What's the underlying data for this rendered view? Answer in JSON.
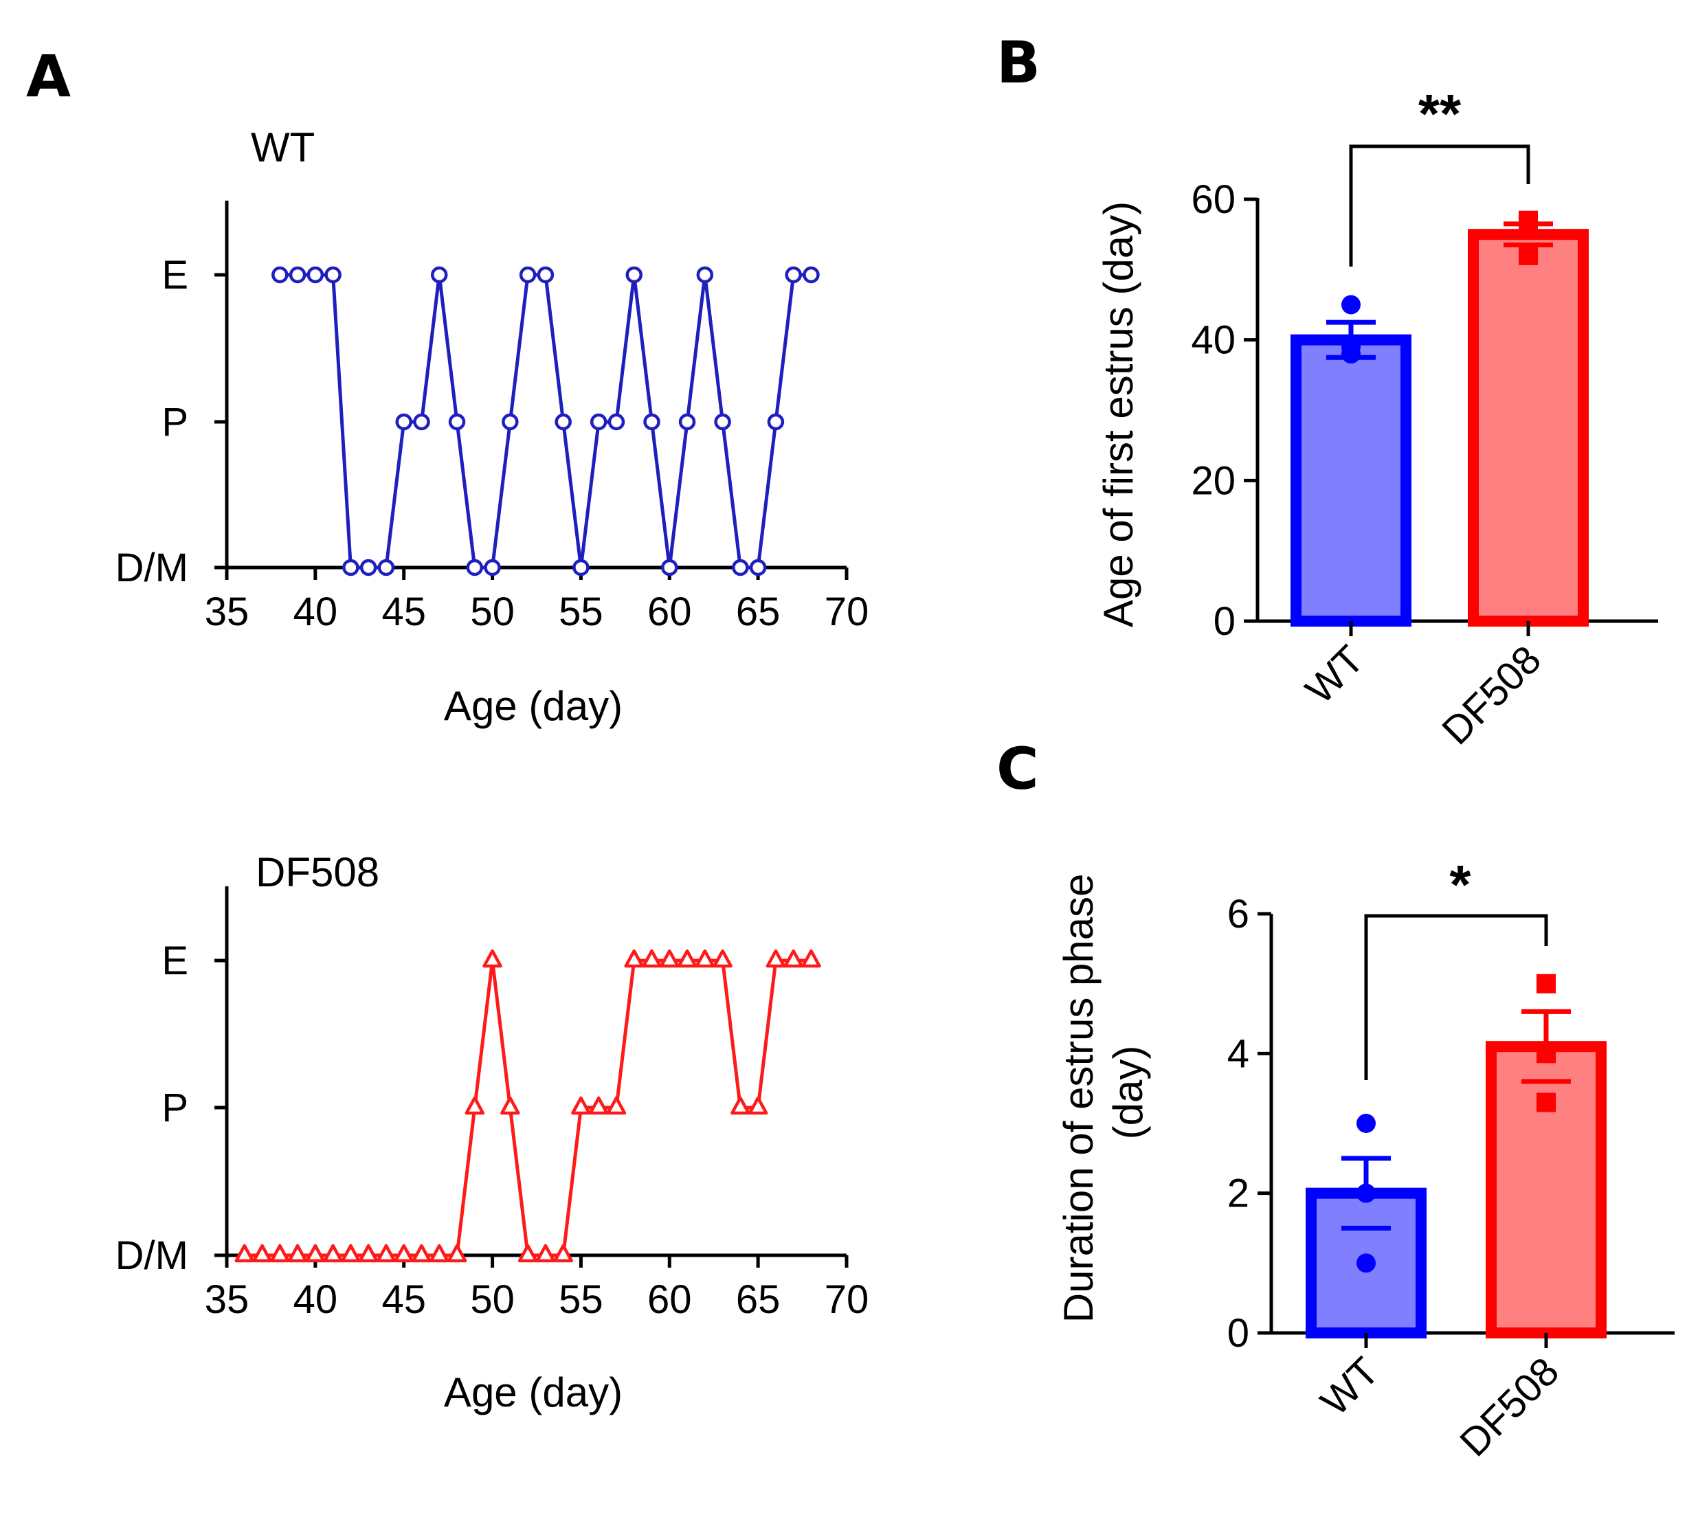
{
  "panels": {
    "a": "A",
    "b": "B",
    "c": "C"
  },
  "colors": {
    "wt_line": "#1f1fbf",
    "df508_line": "#ff1a1a",
    "wt_bar_fill": "#8080ff",
    "wt_bar_edge": "#0000ff",
    "df508_bar_fill": "#ff8080",
    "df508_bar_edge": "#ff0000",
    "axis": "#000000"
  },
  "chart_data": [
    {
      "id": "A-top",
      "type": "line",
      "title": "WT",
      "xlabel": "Age (day)",
      "ylabel": "",
      "xlim": [
        35,
        70
      ],
      "xticks": [
        35,
        40,
        45,
        50,
        55,
        60,
        65,
        70
      ],
      "ytick_labels": [
        "D/M",
        "P",
        "E"
      ],
      "marker": "circle",
      "x": [
        38,
        39,
        40,
        41,
        42,
        43,
        44,
        45,
        46,
        47,
        48,
        49,
        50,
        51,
        52,
        53,
        54,
        55,
        56,
        57,
        58,
        59,
        60,
        61,
        62,
        63,
        64,
        65,
        66,
        67,
        68
      ],
      "y": [
        "E",
        "E",
        "E",
        "E",
        "D/M",
        "D/M",
        "D/M",
        "P",
        "P",
        "E",
        "P",
        "D/M",
        "D/M",
        "P",
        "E",
        "E",
        "P",
        "D/M",
        "P",
        "P",
        "E",
        "P",
        "D/M",
        "P",
        "E",
        "P",
        "D/M",
        "D/M",
        "P",
        "E",
        "E"
      ]
    },
    {
      "id": "A-bottom",
      "type": "line",
      "title": "DF508",
      "xlabel": "Age (day)",
      "ylabel": "",
      "xlim": [
        35,
        70
      ],
      "xticks": [
        35,
        40,
        45,
        50,
        55,
        60,
        65,
        70
      ],
      "ytick_labels": [
        "D/M",
        "P",
        "E"
      ],
      "marker": "triangle",
      "x": [
        36,
        37,
        38,
        39,
        40,
        41,
        42,
        43,
        44,
        45,
        46,
        47,
        48,
        49,
        50,
        51,
        52,
        53,
        54,
        55,
        56,
        57,
        58,
        59,
        60,
        61,
        62,
        63,
        64,
        65,
        66,
        67,
        68
      ],
      "y": [
        "D/M",
        "D/M",
        "D/M",
        "D/M",
        "D/M",
        "D/M",
        "D/M",
        "D/M",
        "D/M",
        "D/M",
        "D/M",
        "D/M",
        "D/M",
        "P",
        "E",
        "P",
        "D/M",
        "D/M",
        "D/M",
        "P",
        "P",
        "P",
        "E",
        "E",
        "E",
        "E",
        "E",
        "E",
        "P",
        "P",
        "E",
        "E",
        "E"
      ]
    },
    {
      "id": "B",
      "type": "bar",
      "title": "",
      "xlabel": "",
      "ylabel": "Age of first estrus (day)",
      "ylim": [
        0,
        60
      ],
      "yticks": [
        0,
        20,
        40,
        60
      ],
      "categories": [
        "WT",
        "DF508"
      ],
      "values": [
        40,
        55
      ],
      "sem": [
        2.5,
        1.5
      ],
      "points": [
        [
          45,
          38,
          39
        ],
        [
          57,
          56,
          52
        ]
      ],
      "point_markers": [
        "circle",
        "square"
      ],
      "significance": "**"
    },
    {
      "id": "C",
      "type": "bar",
      "title": "",
      "xlabel": "",
      "ylabel": "Duration of estrus phase (day)",
      "ylabel_lines": [
        "Duration of estrus phase",
        "(day)"
      ],
      "ylim": [
        0,
        6
      ],
      "yticks": [
        0,
        2,
        4,
        6
      ],
      "categories": [
        "WT",
        "DF508"
      ],
      "values": [
        2,
        4.1
      ],
      "sem": [
        0.5,
        0.5
      ],
      "points": [
        [
          3,
          2,
          1
        ],
        [
          5,
          4,
          3.3
        ]
      ],
      "point_markers": [
        "circle",
        "square"
      ],
      "significance": "*"
    }
  ]
}
